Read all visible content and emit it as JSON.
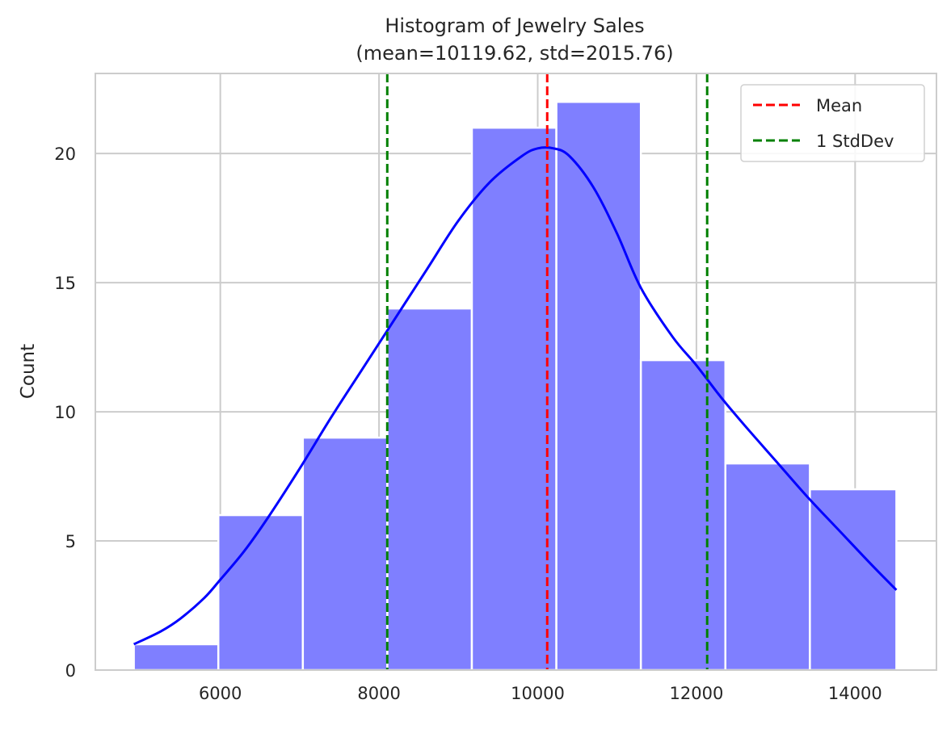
{
  "chart_data": {
    "type": "histogram",
    "title": "Histogram of Jewelry Sales",
    "subtitle": "(mean=10119.62, std=2015.76)",
    "xlabel": "",
    "ylabel": "Count",
    "xlim": [
      4425,
      15025
    ],
    "ylim": [
      0,
      23.1
    ],
    "xticks": [
      6000,
      8000,
      10000,
      12000,
      14000
    ],
    "yticks": [
      0,
      5,
      10,
      15,
      20
    ],
    "grid": true,
    "legend_position": "top-right",
    "bar_color": "#7f7fff",
    "bins": [
      {
        "x0": 4910,
        "x1": 5975,
        "count": 1
      },
      {
        "x0": 5975,
        "x1": 7040,
        "count": 6
      },
      {
        "x0": 7040,
        "x1": 8105,
        "count": 9
      },
      {
        "x0": 8105,
        "x1": 9170,
        "count": 14
      },
      {
        "x0": 9170,
        "x1": 10235,
        "count": 21
      },
      {
        "x0": 10235,
        "x1": 11300,
        "count": 22
      },
      {
        "x0": 11300,
        "x1": 12365,
        "count": 12
      },
      {
        "x0": 12365,
        "x1": 13430,
        "count": 8
      },
      {
        "x0": 13430,
        "x1": 14520,
        "count": 7
      }
    ],
    "kde": {
      "color": "#0000ff",
      "x": [
        4910,
        5250,
        5500,
        5800,
        6000,
        6300,
        6600,
        7000,
        7400,
        7800,
        8200,
        8600,
        9000,
        9400,
        9800,
        10000,
        10200,
        10400,
        10700,
        11000,
        11300,
        11700,
        12000,
        12300,
        12600,
        13000,
        13400,
        13800,
        14200,
        14520
      ],
      "y": [
        1.0,
        1.5,
        2.0,
        2.8,
        3.5,
        4.6,
        5.9,
        7.8,
        9.8,
        11.7,
        13.6,
        15.5,
        17.4,
        18.9,
        19.9,
        20.2,
        20.2,
        19.9,
        18.7,
        16.9,
        14.8,
        12.9,
        11.8,
        10.6,
        9.5,
        8.1,
        6.7,
        5.4,
        4.1,
        3.1
      ]
    },
    "lines": [
      {
        "label": "Mean",
        "x": 10119.62,
        "color": "#ff0000",
        "style": "dashed"
      },
      {
        "label": "1 StdDev",
        "x": 8103.86,
        "color": "#008000",
        "style": "dashed"
      },
      {
        "label": "",
        "x": 12135.38,
        "color": "#008000",
        "style": "dashed"
      }
    ],
    "legend": [
      {
        "label": "Mean",
        "color": "#ff0000"
      },
      {
        "label": "1 StdDev",
        "color": "#008000"
      }
    ]
  }
}
